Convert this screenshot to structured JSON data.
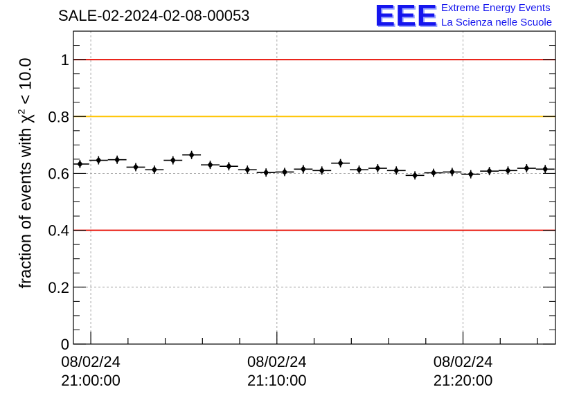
{
  "header": {
    "run_title": "SALE-02-2024-02-08-00053"
  },
  "logo": {
    "mark": "EEE",
    "line1": "Extreme Energy Events",
    "line2": "La Scienza nelle Scuole"
  },
  "chart_data": {
    "type": "scatter",
    "title": "SALE-02-2024-02-08-00053",
    "ylabel": {
      "prefix": "fraction of events with ",
      "symbol": "χ",
      "power": "2",
      "suffix": " < 10.0"
    },
    "xlabel": "",
    "x_unit": "time (hh:mm:ss, 2024-02-08)",
    "xlim": [
      "20:59:04",
      "21:24:58"
    ],
    "ylim": [
      0,
      1.1
    ],
    "yticks": [
      {
        "value": 0,
        "label": "0"
      },
      {
        "value": 0.2,
        "label": "0.2"
      },
      {
        "value": 0.4,
        "label": "0.4"
      },
      {
        "value": 0.6,
        "label": "0.6"
      },
      {
        "value": 0.8,
        "label": "0.8"
      },
      {
        "value": 1.0,
        "label": "1"
      }
    ],
    "xticks": [
      {
        "value": "21:00:00",
        "date": "08/02/24",
        "time": "21:00:00"
      },
      {
        "value": "21:10:00",
        "date": "08/02/24",
        "time": "21:10:00"
      },
      {
        "value": "21:20:00",
        "date": "08/02/24",
        "time": "21:20:00"
      }
    ],
    "grid": true,
    "reference_lines": [
      {
        "y": 1.0,
        "color": "#e8150b"
      },
      {
        "y": 0.8,
        "color": "#ffc400"
      },
      {
        "y": 0.4,
        "color": "#e8150b"
      }
    ],
    "bin_width_seconds": 60,
    "points": [
      {
        "x": "20:59:25",
        "y": 0.633
      },
      {
        "x": "21:00:25",
        "y": 0.646
      },
      {
        "x": "21:01:25",
        "y": 0.648
      },
      {
        "x": "21:02:25",
        "y": 0.622
      },
      {
        "x": "21:03:25",
        "y": 0.613
      },
      {
        "x": "21:04:25",
        "y": 0.646
      },
      {
        "x": "21:05:25",
        "y": 0.665
      },
      {
        "x": "21:06:25",
        "y": 0.63
      },
      {
        "x": "21:07:25",
        "y": 0.625
      },
      {
        "x": "21:08:25",
        "y": 0.613
      },
      {
        "x": "21:09:25",
        "y": 0.603
      },
      {
        "x": "21:10:25",
        "y": 0.605
      },
      {
        "x": "21:11:25",
        "y": 0.615
      },
      {
        "x": "21:12:25",
        "y": 0.61
      },
      {
        "x": "21:13:25",
        "y": 0.636
      },
      {
        "x": "21:14:25",
        "y": 0.613
      },
      {
        "x": "21:15:25",
        "y": 0.618
      },
      {
        "x": "21:16:25",
        "y": 0.61
      },
      {
        "x": "21:17:25",
        "y": 0.593
      },
      {
        "x": "21:18:25",
        "y": 0.602
      },
      {
        "x": "21:19:25",
        "y": 0.605
      },
      {
        "x": "21:20:25",
        "y": 0.597
      },
      {
        "x": "21:21:25",
        "y": 0.608
      },
      {
        "x": "21:22:25",
        "y": 0.61
      },
      {
        "x": "21:23:25",
        "y": 0.618
      },
      {
        "x": "21:24:25",
        "y": 0.615
      }
    ],
    "colors": {
      "marker": "#000000",
      "grid": "#a6a6a6",
      "axis": "#000000"
    }
  }
}
